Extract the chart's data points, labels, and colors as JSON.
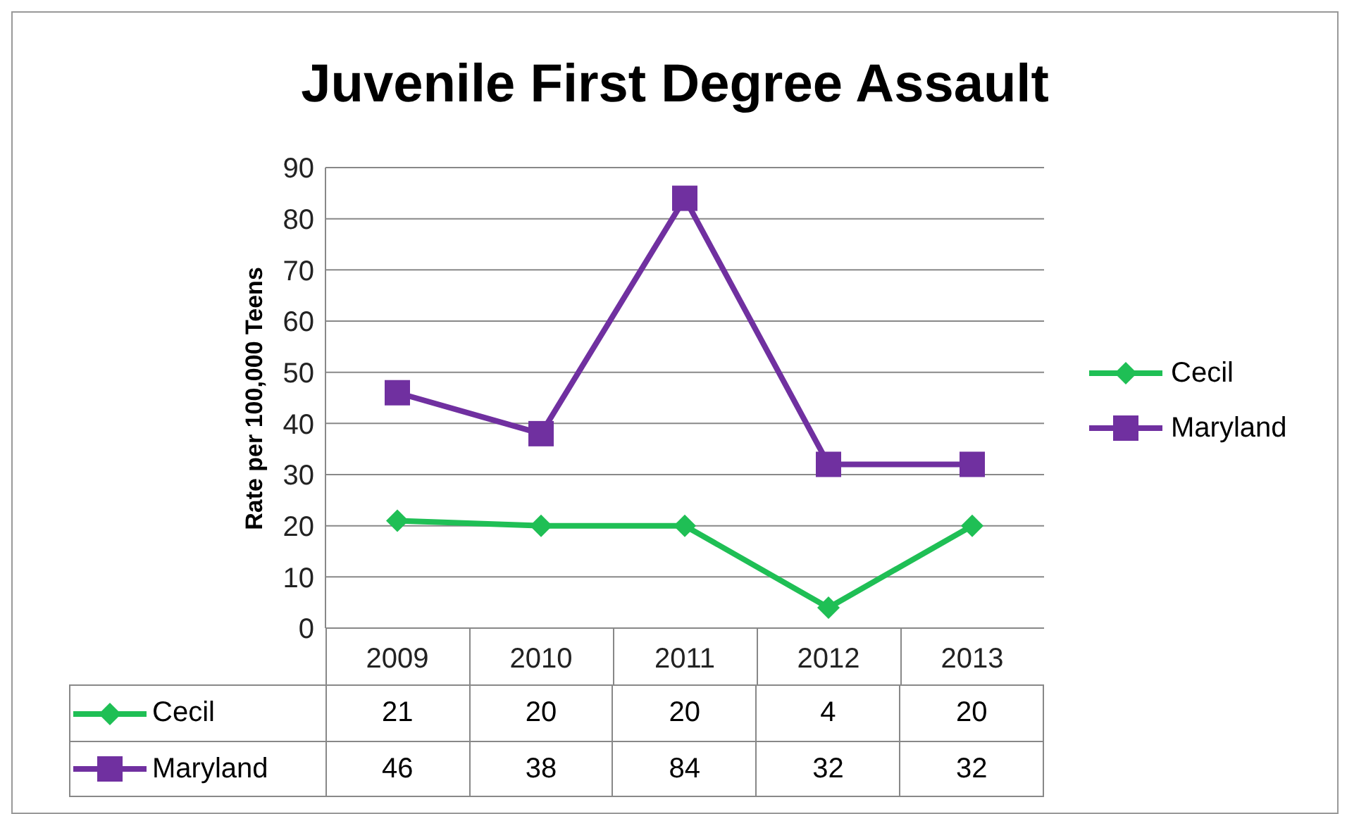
{
  "chart_data": {
    "type": "line",
    "title": "Juvenile First Degree Assault",
    "ylabel": "Rate per 100,000 Teens",
    "categories": [
      "2009",
      "2010",
      "2011",
      "2012",
      "2013"
    ],
    "series": [
      {
        "name": "Cecil",
        "color": "#1fbf55",
        "marker": "diamond",
        "values": [
          21,
          20,
          20,
          4,
          20
        ]
      },
      {
        "name": "Maryland",
        "color": "#7030a0",
        "marker": "square",
        "values": [
          46,
          38,
          84,
          32,
          32
        ]
      }
    ],
    "ylim": [
      0,
      90
    ],
    "yticks": [
      0,
      10,
      20,
      30,
      40,
      50,
      60,
      70,
      80,
      90
    ],
    "grid": "y",
    "legend": "right",
    "data_labels": true
  }
}
